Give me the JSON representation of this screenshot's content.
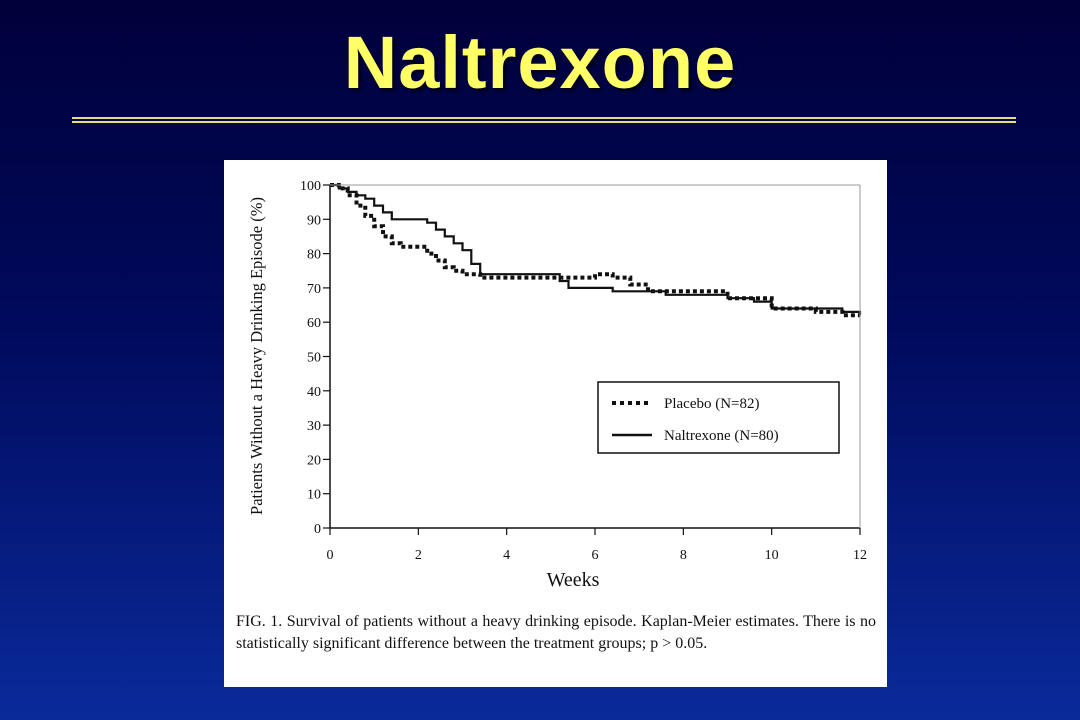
{
  "slide": {
    "title": "Naltrexone",
    "title_color": "#ffff66",
    "rule_color": "#e8e070"
  },
  "figure": {
    "caption": "FIG. 1. Survival of patients without a heavy drinking episode. Kaplan-Meier estimates. There is no statistically significant difference between the treatment groups; p > 0.05."
  },
  "chart_data": {
    "type": "line",
    "title": "",
    "xlabel": "Weeks",
    "ylabel": "Patients Without a Heavy Drinking Episode (%)",
    "xlim": [
      0,
      12
    ],
    "ylim": [
      0,
      100
    ],
    "xticks": [
      0,
      2,
      4,
      6,
      8,
      10,
      12
    ],
    "yticks": [
      0,
      10,
      20,
      30,
      40,
      50,
      60,
      70,
      80,
      90,
      100
    ],
    "grid": false,
    "legend_position": "lower-right",
    "series": [
      {
        "name": "Placebo (N=82)",
        "style": "dotted",
        "color": "#111111",
        "x": [
          0,
          0.2,
          0.4,
          0.6,
          0.8,
          1.0,
          1.2,
          1.4,
          1.6,
          1.8,
          2.0,
          2.2,
          2.4,
          2.6,
          2.8,
          3.0,
          3.2,
          3.4,
          4.0,
          5.0,
          6.0,
          6.4,
          6.8,
          7.2,
          8.0,
          9.0,
          10.0,
          11.0,
          11.4,
          11.6,
          12.0
        ],
        "y": [
          100,
          99,
          97,
          94,
          91,
          88,
          85,
          83,
          82,
          82,
          82,
          80,
          78,
          76,
          75,
          74,
          74,
          73,
          73,
          73,
          74,
          73,
          71,
          69,
          69,
          67,
          64,
          63,
          63,
          62,
          62
        ]
      },
      {
        "name": "Naltrexone (N=80)",
        "style": "solid",
        "color": "#111111",
        "x": [
          0,
          0.2,
          0.4,
          0.6,
          0.8,
          1.0,
          1.2,
          1.4,
          2.0,
          2.2,
          2.4,
          2.6,
          2.8,
          3.0,
          3.2,
          3.4,
          3.6,
          4.0,
          5.0,
          5.2,
          5.4,
          6.0,
          6.4,
          7.0,
          7.6,
          8.0,
          9.0,
          9.6,
          10.0,
          11.0,
          11.6,
          12.0
        ],
        "y": [
          100,
          99,
          98,
          97,
          96,
          94,
          92,
          90,
          90,
          89,
          87,
          85,
          83,
          81,
          77,
          74,
          74,
          74,
          74,
          72,
          70,
          70,
          69,
          69,
          68,
          68,
          67,
          66,
          64,
          64,
          63,
          62
        ]
      }
    ]
  }
}
